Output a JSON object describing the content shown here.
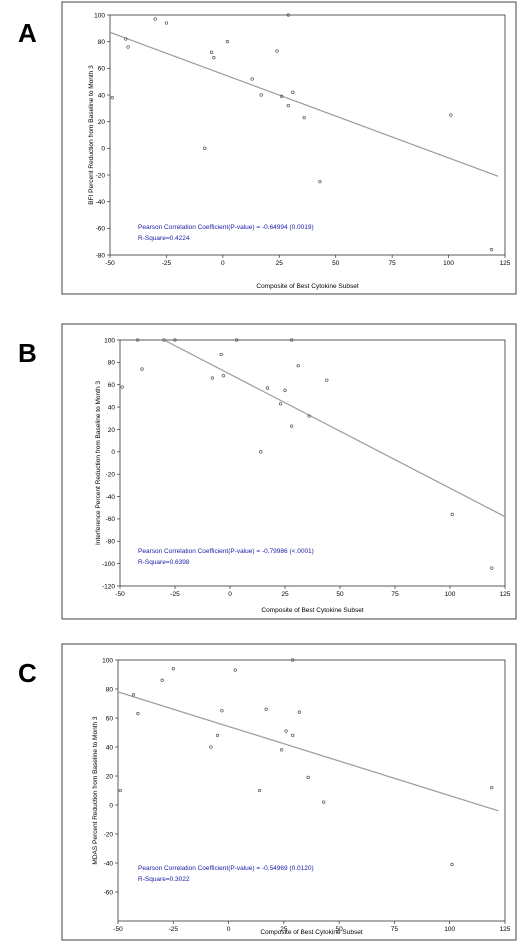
{
  "chart_data": [
    {
      "type": "scatter",
      "panel_label": "A",
      "xlabel": "Composite of Best Cytokine Subset",
      "ylabel": "BFI Percent Reduction from Baseline to Month 3",
      "xlim": [
        -50,
        125
      ],
      "ylim": [
        -80,
        100
      ],
      "x_ticks": [
        -50,
        -25,
        0,
        25,
        50,
        75,
        100,
        125
      ],
      "y_ticks": [
        -80,
        -60,
        -40,
        -20,
        0,
        20,
        40,
        60,
        80,
        100
      ],
      "points": [
        {
          "x": -49,
          "y": 38
        },
        {
          "x": -43,
          "y": 82
        },
        {
          "x": -42,
          "y": 76
        },
        {
          "x": -30,
          "y": 97
        },
        {
          "x": -25,
          "y": 94
        },
        {
          "x": -8,
          "y": 0
        },
        {
          "x": -5,
          "y": 72
        },
        {
          "x": -4,
          "y": 68
        },
        {
          "x": 2,
          "y": 80
        },
        {
          "x": 13,
          "y": 52
        },
        {
          "x": 17,
          "y": 40
        },
        {
          "x": 24,
          "y": 73
        },
        {
          "x": 26,
          "y": 39
        },
        {
          "x": 29,
          "y": 100
        },
        {
          "x": 29,
          "y": 32
        },
        {
          "x": 31,
          "y": 42
        },
        {
          "x": 36,
          "y": 23
        },
        {
          "x": 43,
          "y": -25
        },
        {
          "x": 101,
          "y": 25
        },
        {
          "x": 119,
          "y": -76
        }
      ],
      "fit_line": {
        "x": [
          -50,
          122
        ],
        "y": [
          87,
          -21
        ]
      },
      "annotation_line1": "Pearson Correlation Coefficient(P-value) = -0.64994 (0.0019)",
      "annotation_line2": "R-Square=0.4224"
    },
    {
      "type": "scatter",
      "panel_label": "B",
      "xlabel": "Composite of Best Cytokine Subset",
      "ylabel": "Interference Percent Reduction from Baseline to Month 3",
      "xlim": [
        -50,
        125
      ],
      "ylim": [
        -120,
        100
      ],
      "x_ticks": [
        -50,
        -25,
        0,
        25,
        50,
        75,
        100,
        125
      ],
      "y_ticks": [
        -120,
        -100,
        -80,
        -60,
        -40,
        -20,
        0,
        20,
        40,
        60,
        80,
        100
      ],
      "points": [
        {
          "x": -49,
          "y": 58
        },
        {
          "x": -42,
          "y": 100
        },
        {
          "x": -40,
          "y": 74
        },
        {
          "x": -30,
          "y": 100
        },
        {
          "x": -25,
          "y": 100
        },
        {
          "x": -8,
          "y": 66
        },
        {
          "x": -4,
          "y": 87
        },
        {
          "x": -3,
          "y": 68
        },
        {
          "x": 3,
          "y": 100
        },
        {
          "x": 14,
          "y": 0
        },
        {
          "x": 17,
          "y": 57
        },
        {
          "x": 23,
          "y": 43
        },
        {
          "x": 25,
          "y": 55
        },
        {
          "x": 28,
          "y": 100
        },
        {
          "x": 28,
          "y": 23
        },
        {
          "x": 31,
          "y": 77
        },
        {
          "x": 36,
          "y": 32
        },
        {
          "x": 44,
          "y": 64
        },
        {
          "x": 101,
          "y": -56
        },
        {
          "x": 119,
          "y": -104
        }
      ],
      "fit_line": {
        "x": [
          -30,
          125
        ],
        "y": [
          100,
          -58
        ]
      },
      "annotation_line1": "Pearson Correlation Coefficient(P-value) = -0.79986 (<.0001)",
      "annotation_line2": "R-Square=0.6398"
    },
    {
      "type": "scatter",
      "panel_label": "C",
      "xlabel": "Composite of Best Cytokine Subset",
      "ylabel": "MDAS Percent Reduction from Baseline to Month 3",
      "xlim": [
        -50,
        125
      ],
      "ylim": [
        -80,
        100
      ],
      "x_ticks": [
        -50,
        -25,
        0,
        25,
        50,
        75,
        100,
        125
      ],
      "y_ticks": [
        -60,
        -40,
        -20,
        0,
        20,
        40,
        60,
        80,
        100
      ],
      "points": [
        {
          "x": -49,
          "y": 10
        },
        {
          "x": -43,
          "y": 76
        },
        {
          "x": -41,
          "y": 63
        },
        {
          "x": -30,
          "y": 86
        },
        {
          "x": -25,
          "y": 94
        },
        {
          "x": -8,
          "y": 40
        },
        {
          "x": -5,
          "y": 48
        },
        {
          "x": -3,
          "y": 65
        },
        {
          "x": 3,
          "y": 93
        },
        {
          "x": 14,
          "y": 10
        },
        {
          "x": 17,
          "y": 66
        },
        {
          "x": 24,
          "y": 38
        },
        {
          "x": 26,
          "y": 51
        },
        {
          "x": 29,
          "y": 100
        },
        {
          "x": 29,
          "y": 48
        },
        {
          "x": 32,
          "y": 64
        },
        {
          "x": 36,
          "y": 19
        },
        {
          "x": 43,
          "y": 2
        },
        {
          "x": 101,
          "y": -41
        },
        {
          "x": 119,
          "y": 12
        }
      ],
      "fit_line": {
        "x": [
          -50,
          122
        ],
        "y": [
          78,
          -4
        ]
      },
      "annotation_line1": "Pearson Correlation Coefficient(P-value) = -0.54969 (0.0120)",
      "annotation_line2": "R-Square=0.3022"
    }
  ]
}
